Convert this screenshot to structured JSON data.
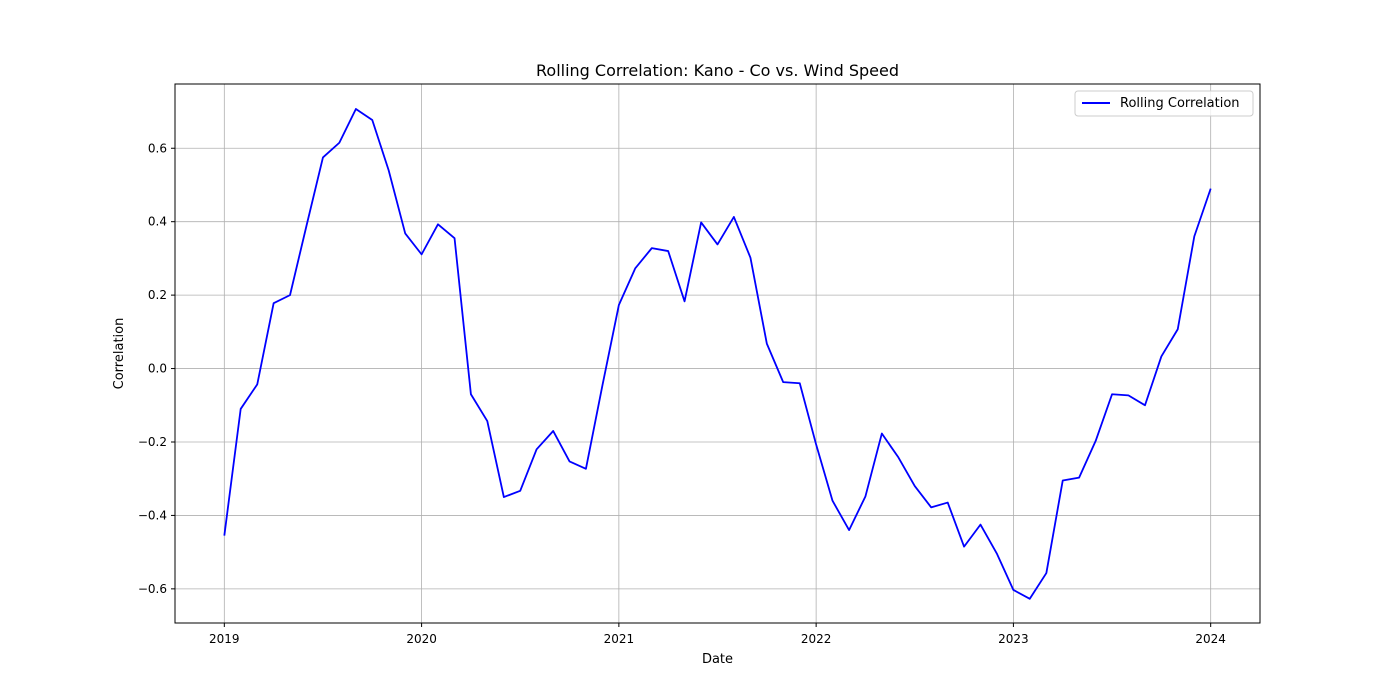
{
  "chart_data": {
    "type": "line",
    "title": "Rolling Correlation: Kano - Co vs. Wind Speed",
    "xlabel": "Date",
    "ylabel": "Correlation",
    "xlim": [
      2018.75,
      2024.25
    ],
    "ylim": [
      -0.693,
      0.775
    ],
    "x_ticks": [
      2019,
      2020,
      2021,
      2022,
      2023,
      2024
    ],
    "x_tick_labels": [
      "2019",
      "2020",
      "2021",
      "2022",
      "2023",
      "2024"
    ],
    "y_ticks": [
      -0.6,
      -0.4,
      -0.2,
      0.0,
      0.2,
      0.4,
      0.6
    ],
    "y_tick_labels": [
      "−0.6",
      "−0.4",
      "−0.2",
      "0.0",
      "0.2",
      "0.4",
      "0.6"
    ],
    "grid": true,
    "legend_position": "top-right",
    "series": [
      {
        "name": "Rolling Correlation",
        "color": "#0000ff",
        "x": [
          2019.0,
          2019.083,
          2019.167,
          2019.25,
          2019.333,
          2019.417,
          2019.5,
          2019.583,
          2019.667,
          2019.75,
          2019.833,
          2019.917,
          2020.0,
          2020.083,
          2020.167,
          2020.25,
          2020.333,
          2020.417,
          2020.5,
          2020.583,
          2020.667,
          2020.75,
          2020.833,
          2020.917,
          2021.0,
          2021.083,
          2021.167,
          2021.25,
          2021.333,
          2021.417,
          2021.5,
          2021.583,
          2021.667,
          2021.75,
          2021.833,
          2021.917,
          2022.0,
          2022.083,
          2022.167,
          2022.25,
          2022.333,
          2022.417,
          2022.5,
          2022.583,
          2022.667,
          2022.75,
          2022.833,
          2022.917,
          2023.0,
          2023.083,
          2023.167,
          2023.25,
          2023.333,
          2023.417,
          2023.5,
          2023.583,
          2023.667,
          2023.75,
          2023.833,
          2023.917,
          2024.0
        ],
        "y": [
          -0.455,
          -0.11,
          -0.043,
          0.178,
          0.2,
          0.39,
          0.575,
          0.615,
          0.707,
          0.677,
          0.54,
          0.368,
          0.311,
          0.393,
          0.355,
          -0.07,
          -0.143,
          -0.35,
          -0.333,
          -0.22,
          -0.17,
          -0.253,
          -0.273,
          -0.045,
          0.173,
          0.273,
          0.328,
          0.32,
          0.183,
          0.398,
          0.338,
          0.413,
          0.302,
          0.068,
          -0.037,
          -0.04,
          -0.207,
          -0.36,
          -0.44,
          -0.348,
          -0.177,
          -0.242,
          -0.32,
          -0.378,
          -0.365,
          -0.485,
          -0.425,
          -0.505,
          -0.603,
          -0.627,
          -0.557,
          -0.305,
          -0.297,
          -0.197,
          -0.07,
          -0.073,
          -0.1,
          0.033,
          0.107,
          0.36,
          0.49
        ]
      }
    ]
  }
}
